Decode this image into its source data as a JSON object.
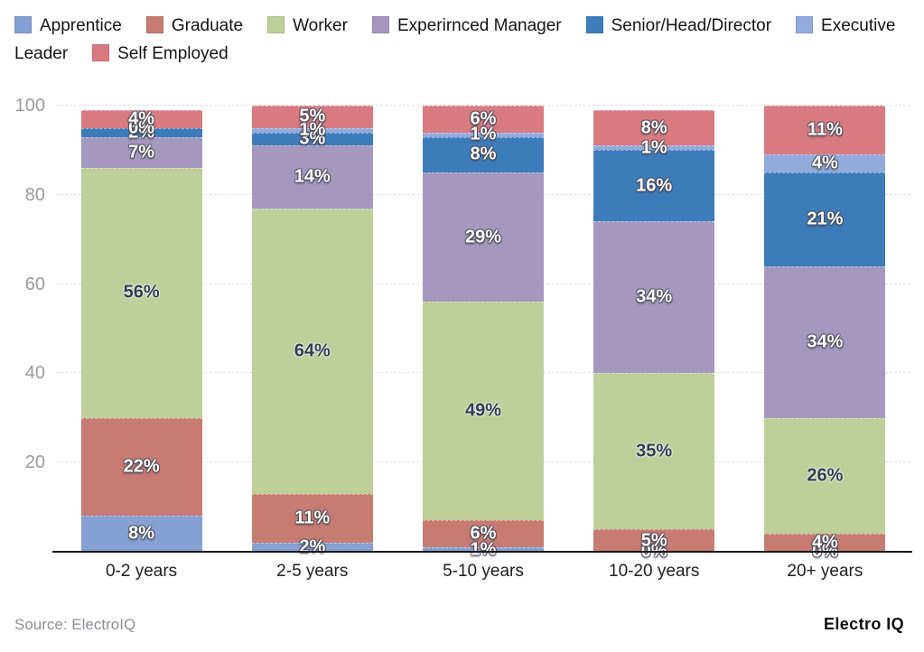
{
  "chart_data": {
    "type": "bar",
    "stacked": true,
    "title": "",
    "xlabel": "",
    "ylabel": "",
    "ylim": [
      0,
      100
    ],
    "yticks": [
      20,
      40,
      60,
      80,
      100
    ],
    "grid": true,
    "legend_position": "top",
    "value_suffix": "%",
    "categories": [
      "0-2 years",
      "2-5 years",
      "5-10 years",
      "10-20 years",
      "20+ years"
    ],
    "series": [
      {
        "name": "Apprentice",
        "color": "#85a0d3",
        "label_style": "light",
        "values": [
          8,
          2,
          1,
          0,
          0
        ]
      },
      {
        "name": "Graduate",
        "color": "#c77b72",
        "label_style": "light",
        "values": [
          22,
          11,
          6,
          5,
          4
        ]
      },
      {
        "name": "Worker",
        "color": "#becf9a",
        "label_style": "dark",
        "values": [
          56,
          64,
          49,
          35,
          26
        ]
      },
      {
        "name": "Experirnced Manager",
        "color": "#a498bf",
        "label_style": "light",
        "values": [
          7,
          14,
          29,
          34,
          34
        ]
      },
      {
        "name": "Senior/Head/Director",
        "color": "#3d7cba",
        "label_style": "light",
        "values": [
          2,
          3,
          8,
          16,
          21
        ]
      },
      {
        "name": "Executive Leader",
        "color": "#93abdc",
        "label_style": "light",
        "values": [
          0,
          1,
          1,
          1,
          4
        ]
      },
      {
        "name": "Self Employed",
        "color": "#d87b80",
        "label_style": "light",
        "values": [
          4,
          5,
          6,
          8,
          11
        ]
      }
    ]
  },
  "footer": {
    "source": "Source: ElectroIQ",
    "brand": "Electro IQ"
  }
}
